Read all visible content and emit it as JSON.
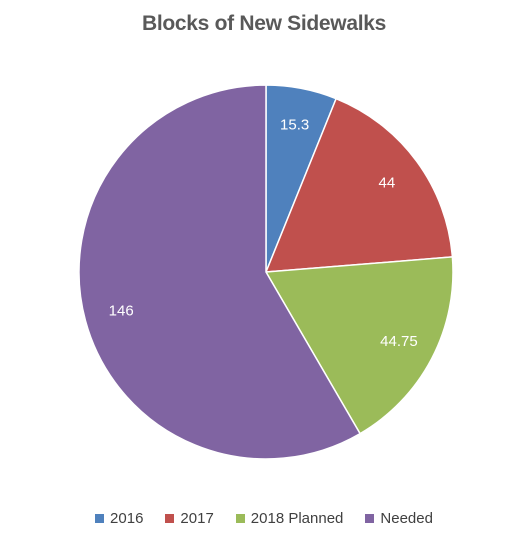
{
  "chart_data": {
    "type": "pie",
    "title": "Blocks of New Sidewalks",
    "categories": [
      "2016",
      "2017",
      "2018 Planned",
      "Needed"
    ],
    "values": [
      15.3,
      44,
      44.75,
      146
    ],
    "data_labels": [
      "15.3",
      "44",
      "44.75",
      "146"
    ],
    "colors": [
      "#4f81bd",
      "#c0504d",
      "#9bbb59",
      "#8064a2"
    ],
    "start_angle_deg": 0,
    "direction": "clockwise",
    "legend": "bottom",
    "label_color": "#ffffff",
    "slice_border_color": "#ffffff"
  }
}
